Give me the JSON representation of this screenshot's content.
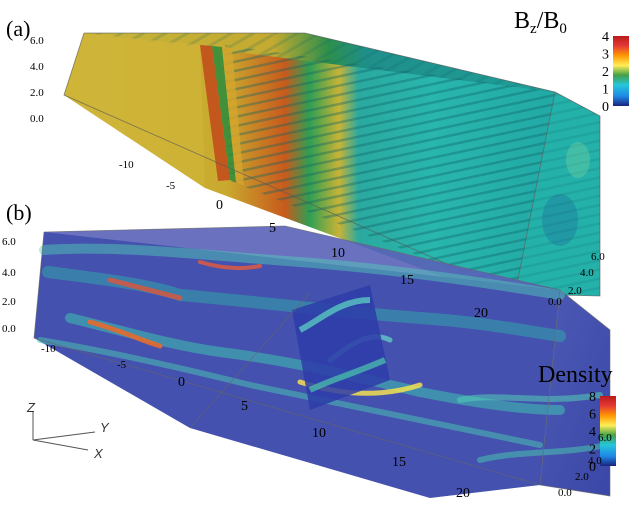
{
  "panels": [
    {
      "label": "(a)",
      "colorbar": {
        "title": "B",
        "title_sub1": "z",
        "title_mid": "/B",
        "title_sub2": "0",
        "ticks": [
          "4",
          "3",
          "2",
          "1",
          "0"
        ],
        "colors": [
          "#b71c1c",
          "#e53935",
          "#ff9800",
          "#ffee58",
          "#43a047",
          "#26c6da",
          "#1e88e5",
          "#1a237e"
        ]
      },
      "z_ticks": [
        "6.0",
        "4.0",
        "2.0",
        "0.0"
      ],
      "x_ticks": [
        "-10",
        "-5",
        "0",
        "5",
        "10",
        "15",
        "20"
      ],
      "y_ticks": [
        "6.0",
        "4.0",
        "2.0",
        "0.0"
      ]
    },
    {
      "label": "(b)",
      "colorbar": {
        "title": "Density",
        "ticks": [
          "8",
          "6",
          "4",
          "2",
          "0"
        ],
        "colors": [
          "#b71c1c",
          "#e53935",
          "#ff9800",
          "#ffee58",
          "#43a047",
          "#26c6da",
          "#1e88e5",
          "#1a237e"
        ]
      },
      "z_ticks": [
        "6.0",
        "4.0",
        "2.0",
        "0.0"
      ],
      "x_ticks": [
        "-10",
        "-5",
        "0",
        "5",
        "10",
        "15",
        "20"
      ],
      "y_ticks": [
        "6.0",
        "4.0",
        "2.0",
        "0.0"
      ]
    }
  ],
  "triad": {
    "z": "Z",
    "y": "Y",
    "x": "X"
  }
}
